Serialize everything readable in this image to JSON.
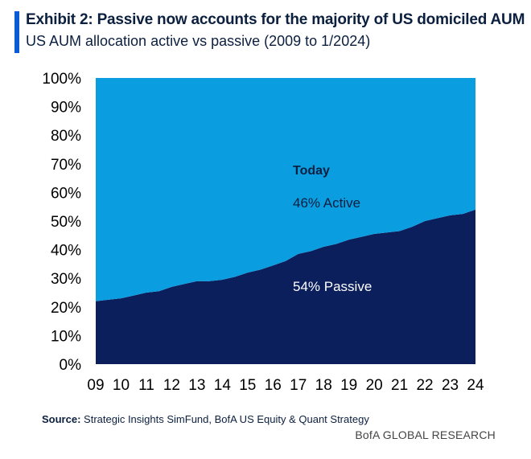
{
  "header": {
    "title": "Exhibit 2: Passive now accounts for the majority of US domiciled AUM",
    "subtitle": "US AUM allocation active vs passive (2009 to 1/2024)",
    "accent_color": "#0a5bd6"
  },
  "footer": {
    "source_label": "Source:",
    "source_text": "Strategic Insights SimFund, BofA US Equity & Quant Strategy",
    "brand": "BofA GLOBAL RESEARCH"
  },
  "chart_data": {
    "type": "area",
    "stacked": true,
    "x": [
      2009,
      2009.5,
      2010,
      2010.5,
      2011,
      2011.5,
      2012,
      2012.5,
      2013,
      2013.5,
      2014,
      2014.5,
      2015,
      2015.5,
      2016,
      2016.5,
      2017,
      2017.5,
      2018,
      2018.5,
      2019,
      2019.5,
      2020,
      2020.5,
      2021,
      2021.5,
      2022,
      2022.5,
      2023,
      2023.5,
      2024
    ],
    "x_tick_labels": [
      "09",
      "10",
      "11",
      "12",
      "13",
      "14",
      "15",
      "16",
      "17",
      "18",
      "19",
      "20",
      "21",
      "22",
      "23",
      "24"
    ],
    "x_ticks": [
      2009,
      2010,
      2011,
      2012,
      2013,
      2014,
      2015,
      2016,
      2017,
      2018,
      2019,
      2020,
      2021,
      2022,
      2023,
      2024
    ],
    "series": [
      {
        "name": "Passive",
        "color": "#0b1f5c",
        "values": [
          22,
          22.5,
          23,
          24,
          25,
          25.5,
          27,
          28,
          29,
          29,
          29.5,
          30.5,
          32,
          33,
          34.5,
          36,
          38.5,
          39.5,
          41,
          42,
          43.5,
          44.5,
          45.5,
          46,
          46.5,
          48,
          50,
          51,
          52,
          52.5,
          54
        ]
      },
      {
        "name": "Active",
        "color": "#0a9de0",
        "values": [
          78,
          77.5,
          77,
          76,
          75,
          74.5,
          73,
          72,
          71,
          71,
          70.5,
          69.5,
          68,
          67,
          65.5,
          64,
          61.5,
          60.5,
          59,
          58,
          56.5,
          55.5,
          54.5,
          54,
          53.5,
          52,
          50,
          49,
          48,
          47.5,
          46
        ]
      }
    ],
    "ylim": [
      0,
      100
    ],
    "y_ticks": [
      0,
      10,
      20,
      30,
      40,
      50,
      60,
      70,
      80,
      90,
      100
    ],
    "y_tick_labels": [
      "0%",
      "10%",
      "20%",
      "30%",
      "40%",
      "50%",
      "60%",
      "70%",
      "80%",
      "90%",
      "100%"
    ],
    "annotations": {
      "today": "Today",
      "active": "46% Active",
      "passive": "54% Passive"
    },
    "xlabel": "",
    "ylabel": "",
    "grid": false
  }
}
